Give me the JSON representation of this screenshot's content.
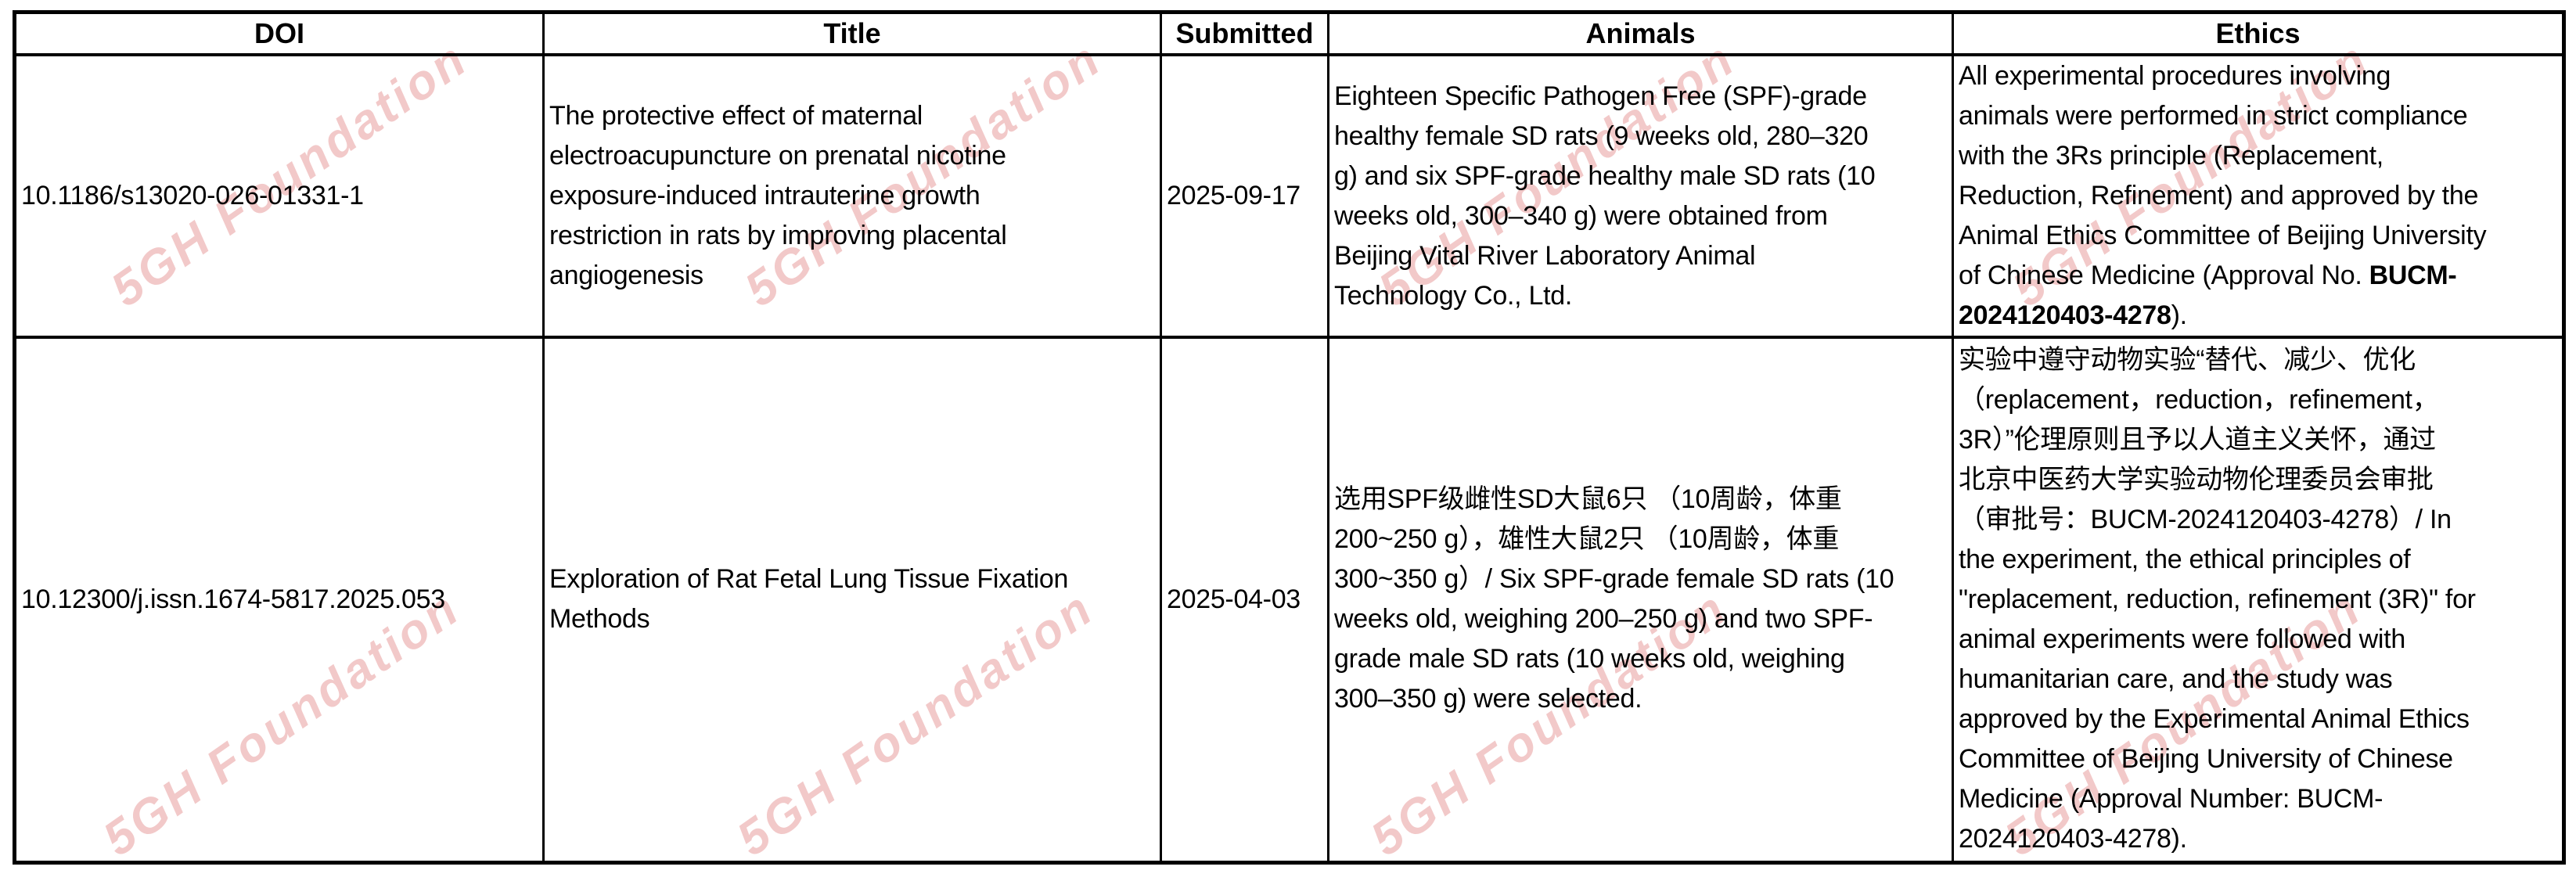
{
  "watermark": {
    "text": "5GH Foundation",
    "color": "rgba(224,126,126,0.42)"
  },
  "table": {
    "headers": [
      "DOI",
      "Title",
      "Submitted",
      "Animals",
      "Ethics"
    ],
    "rows": [
      {
        "doi": "10.1186/s13020-026-01331-1",
        "title": "The protective effect of maternal\nelectroacupuncture on prenatal nicotine\nexposure-induced intrauterine growth\nrestriction in rats by improving placental\nangiogenesis",
        "submitted": "2025-09-17",
        "animals": "Eighteen Specific Pathogen Free (SPF)-grade\nhealthy female SD rats (9 weeks old, 280–320\ng) and six SPF-grade healthy male SD rats (10\nweeks old, 300–340 g) were obtained from\nBeijing Vital River Laboratory Animal\nTechnology Co., Ltd.",
        "ethics": [
          {
            "text": "All experimental procedures involving\nanimals were performed in strict compliance\nwith the 3Rs principle (Replacement,\nReduction, Refinement) and approved by the\nAnimal Ethics Committee of Beijing University\nof Chinese Medicine (Approval No. ",
            "bold": false
          },
          {
            "text": "BUCM-\n2024120403-4278",
            "bold": true
          },
          {
            "text": ").",
            "bold": false
          }
        ]
      },
      {
        "doi": "10.12300/j.issn.1674-5817.2025.053",
        "title": "Exploration of Rat Fetal Lung Tissue Fixation\nMethods",
        "submitted": "2025-04-03",
        "animals": "选用SPF级雌性SD大鼠6只 （10周龄，体重\n200~250 g），雄性大鼠2只 （10周龄，体重\n300~350 g）/ Six SPF-grade female SD rats (10\nweeks old, weighing 200–250 g) and two SPF-\ngrade male SD rats (10 weeks old, weighing\n300–350 g) were selected.",
        "ethics": [
          {
            "text": "实验中遵守动物实验“替代、减少、优化\n（replacement，reduction，refinement，\n3R）”伦理原则且予以人道主义关怀，通过\n北京中医药大学实验动物伦理委员会审批\n（审批号：BUCM-2024120403-4278）/ In\nthe experiment, the ethical principles of\n\"replacement, reduction, refinement (3R)\" for\nanimal experiments were followed with\nhumanitarian care, and the study was\napproved by the Experimental Animal Ethics\nCommittee of Beijing University of Chinese\nMedicine (Approval Number: BUCM-\n2024120403-4278).",
            "bold": false
          }
        ]
      }
    ]
  }
}
